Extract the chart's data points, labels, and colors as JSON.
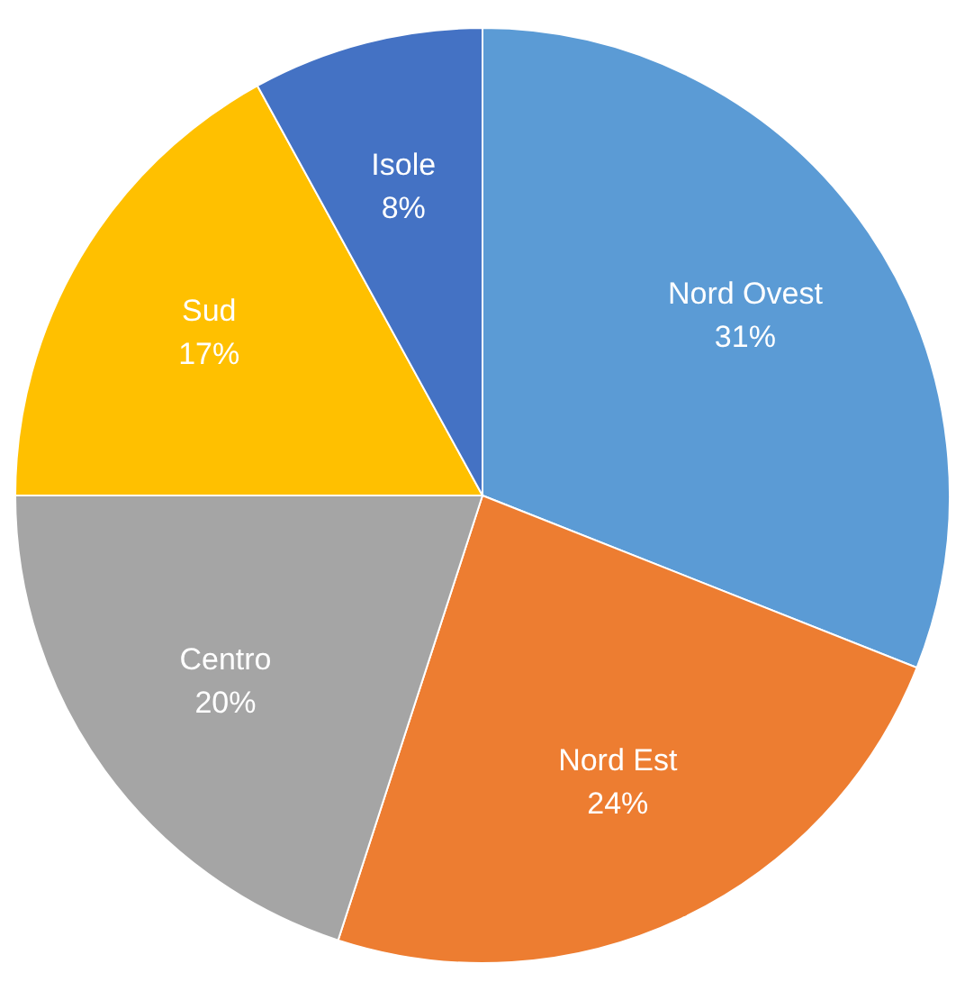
{
  "chart_data": {
    "type": "pie",
    "categories": [
      "Nord Ovest",
      "Nord Est",
      "Centro",
      "Sud",
      "Isole"
    ],
    "values": [
      31,
      24,
      20,
      17,
      8
    ],
    "value_labels": [
      "31%",
      "24%",
      "20%",
      "17%",
      "8%"
    ],
    "colors": [
      "#5b9bd5",
      "#ed7d31",
      "#a5a5a5",
      "#ffc000",
      "#4472c4"
    ],
    "legend": false
  }
}
